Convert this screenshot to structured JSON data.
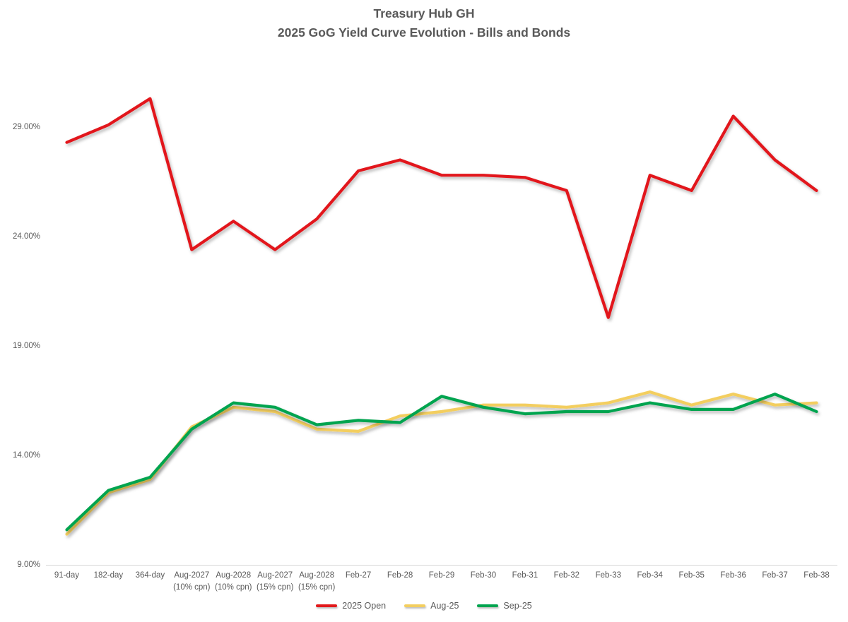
{
  "title": {
    "line1": "Treasury Hub GH",
    "line2": "2025 GoG Yield Curve Evolution - Bills and Bonds"
  },
  "colors": {
    "red": "#E2191B",
    "gold": "#F3CE5F",
    "green": "#00A44F",
    "axis_text": "#595959",
    "axis_line": "#D6D6D6",
    "background": "#FFFFFF"
  },
  "chart_data": {
    "type": "line",
    "title": "Treasury Hub GH",
    "subtitle": "2025 GoG Yield Curve Evolution - Bills and Bonds",
    "categories": [
      "91-day",
      "182-day",
      "364-day",
      "Aug-2027\n(10% cpn)",
      "Aug-2028\n(10% cpn)",
      "Aug-2027\n(15% cpn)",
      "Aug-2028\n(15% cpn)",
      "Feb-27",
      "Feb-28",
      "Feb-29",
      "Feb-30",
      "Feb-31",
      "Feb-32",
      "Feb-33",
      "Feb-34",
      "Feb-35",
      "Feb-36",
      "Feb-37",
      "Feb-38"
    ],
    "series": [
      {
        "name": "2025 Open",
        "color_key": "red",
        "values": [
          28.3,
          29.1,
          30.3,
          23.4,
          24.7,
          23.4,
          24.8,
          27.0,
          27.5,
          26.8,
          26.8,
          26.7,
          26.1,
          20.3,
          26.8,
          26.1,
          29.5,
          27.5,
          26.1
        ]
      },
      {
        "name": "Aug-25",
        "color_key": "gold",
        "values": [
          10.4,
          12.3,
          12.9,
          15.3,
          16.2,
          16.0,
          15.2,
          15.1,
          15.8,
          16.0,
          16.3,
          16.3,
          16.2,
          16.4,
          16.9,
          16.3,
          16.8,
          16.3,
          16.4
        ]
      },
      {
        "name": "Sep-25",
        "color_key": "green",
        "values": [
          10.6,
          12.4,
          13.0,
          15.2,
          16.4,
          16.2,
          15.4,
          15.6,
          15.5,
          16.7,
          16.2,
          15.9,
          16.0,
          16.0,
          16.4,
          16.1,
          16.1,
          16.8,
          16.0
        ]
      }
    ],
    "y_ticks": [
      "9.00%",
      "14.00%",
      "19.00%",
      "24.00%",
      "29.00%"
    ],
    "y_tick_values": [
      9,
      14,
      19,
      24,
      29
    ],
    "ylim": [
      9,
      31.5
    ],
    "xlabel": "",
    "ylabel": "",
    "grid": false,
    "legend_position": "bottom"
  }
}
